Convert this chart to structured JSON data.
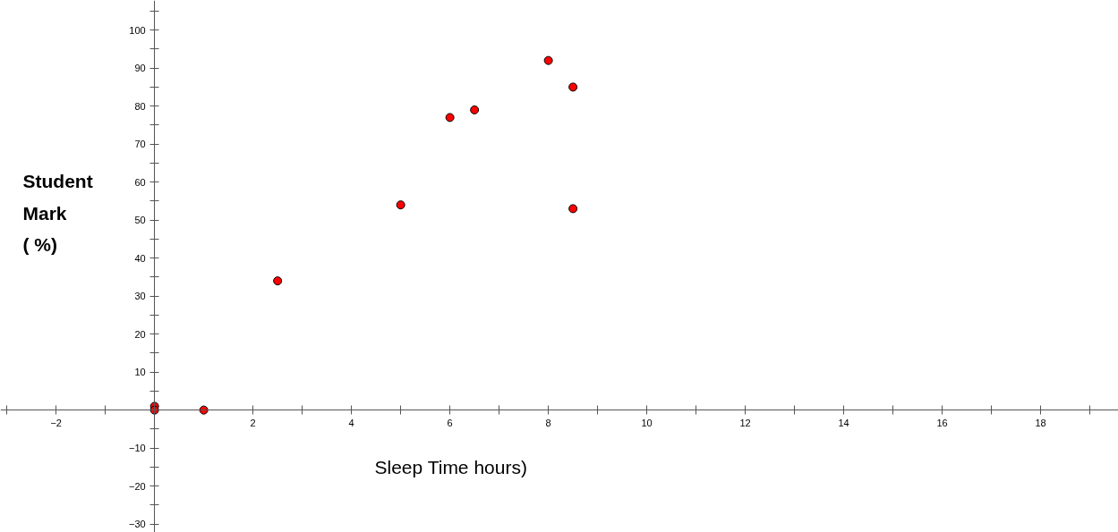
{
  "chart_data": {
    "type": "scatter",
    "xlabel": "Sleep Time hours)",
    "ylabel": "Student\nMark\n(  %)",
    "x": [
      0,
      0,
      1,
      2.5,
      5,
      6,
      6.5,
      8,
      8.5,
      8.5
    ],
    "series": [
      {
        "color": "#ff0000",
        "values": [
          1,
          0,
          0,
          34,
          54,
          77,
          79,
          92,
          85,
          53
        ]
      }
    ],
    "xlim": [
      -3.13,
      19.58
    ],
    "ylim": [
      -32.2,
      107.8
    ],
    "xticks": [
      {
        "value": -3,
        "label": null
      },
      {
        "value": -2,
        "label": "−2"
      },
      {
        "value": -1,
        "label": null
      },
      {
        "value": 1,
        "label": null
      },
      2,
      {
        "value": 3,
        "label": null
      },
      4,
      {
        "value": 5,
        "label": null
      },
      6,
      {
        "value": 7,
        "label": null
      },
      8,
      {
        "value": 9,
        "label": null
      },
      10,
      {
        "value": 11,
        "label": null
      },
      12,
      {
        "value": 13,
        "label": null
      },
      14,
      {
        "value": 15,
        "label": null
      },
      16,
      {
        "value": 17,
        "label": null
      },
      18,
      {
        "value": 19,
        "label": null
      }
    ],
    "yticks": [
      {
        "value": -30,
        "label": "−30"
      },
      {
        "value": -25,
        "label": null
      },
      {
        "value": -20,
        "label": "−20"
      },
      {
        "value": -15,
        "label": null
      },
      {
        "value": -10,
        "label": "−10"
      },
      {
        "value": -5,
        "label": null
      },
      {
        "value": 5,
        "label": null
      },
      10,
      {
        "value": 15,
        "label": null
      },
      20,
      {
        "value": 25,
        "label": null
      },
      30,
      {
        "value": 35,
        "label": null
      },
      40,
      {
        "value": 45,
        "label": null
      },
      50,
      {
        "value": 55,
        "label": null
      },
      60,
      {
        "value": 65,
        "label": null
      },
      70,
      {
        "value": 75,
        "label": null
      },
      80,
      {
        "value": 85,
        "label": null
      },
      90,
      {
        "value": 95,
        "label": null
      },
      100,
      {
        "value": 105,
        "label": null
      }
    ],
    "marker": "circle",
    "grid": false
  }
}
